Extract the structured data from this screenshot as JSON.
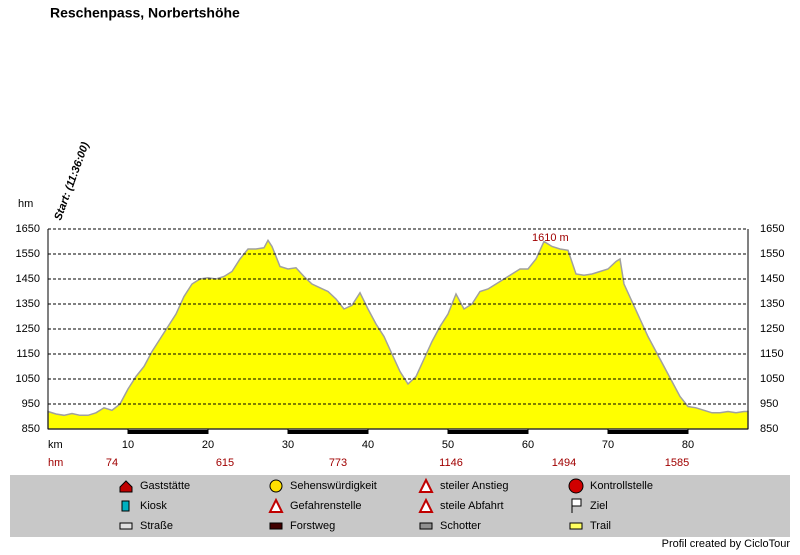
{
  "chart_data": {
    "type": "area",
    "title": "Reschenpass, Norbertshöhe",
    "start_label": "Start: (11:36:00)",
    "ylabel": "hm",
    "xlabel": "km",
    "annotation": {
      "text": "1610 m",
      "x": 62,
      "y": 1610
    },
    "color": "#ffff00",
    "line_color": "#a0a0a0",
    "x": [
      0,
      1,
      2,
      3,
      4,
      5,
      6,
      7,
      8,
      9,
      10,
      11,
      12,
      13,
      14,
      15,
      16,
      17,
      18,
      19,
      20,
      21,
      22,
      23,
      24,
      25,
      26,
      27,
      27.5,
      28,
      29,
      30,
      31,
      32,
      33,
      34,
      35,
      36,
      37,
      38,
      39,
      40,
      41,
      42,
      43,
      44,
      45,
      46,
      47,
      48,
      49,
      50,
      51,
      52,
      53,
      54,
      55,
      56,
      57,
      58,
      59,
      60,
      61,
      62,
      63,
      64,
      65,
      66,
      67,
      68,
      69,
      70,
      71,
      71.5,
      72,
      73,
      74,
      75,
      76,
      77,
      78,
      79,
      80,
      81,
      82,
      83,
      84,
      85,
      86,
      87,
      87.5
    ],
    "values": [
      920,
      910,
      905,
      912,
      905,
      905,
      915,
      935,
      925,
      950,
      1010,
      1060,
      1100,
      1160,
      1210,
      1260,
      1310,
      1380,
      1430,
      1450,
      1455,
      1450,
      1460,
      1480,
      1530,
      1570,
      1570,
      1575,
      1605,
      1580,
      1500,
      1490,
      1495,
      1460,
      1430,
      1415,
      1400,
      1370,
      1330,
      1345,
      1395,
      1330,
      1270,
      1220,
      1150,
      1080,
      1030,
      1060,
      1130,
      1200,
      1260,
      1310,
      1390,
      1330,
      1350,
      1400,
      1410,
      1430,
      1450,
      1470,
      1490,
      1490,
      1530,
      1600,
      1580,
      1570,
      1565,
      1470,
      1465,
      1470,
      1480,
      1490,
      1520,
      1530,
      1430,
      1360,
      1290,
      1220,
      1160,
      1100,
      1040,
      980,
      940,
      935,
      925,
      915,
      915,
      920,
      915,
      920,
      920
    ],
    "xlim": [
      0,
      87.5
    ],
    "xticks": [
      10,
      20,
      30,
      40,
      50,
      60,
      70,
      80
    ],
    "ylim": [
      850,
      1650
    ],
    "yticks": [
      850,
      950,
      1050,
      1150,
      1250,
      1350,
      1450,
      1550,
      1650
    ],
    "grid": true,
    "climb": {
      "label": "hm",
      "values": [
        74,
        615,
        773,
        1146,
        1494,
        1585
      ]
    }
  },
  "legend": {
    "items": [
      "Gaststätte",
      "Sehenswürdigkeit",
      "steiler Anstieg",
      "Kontrollstelle",
      "Kiosk",
      "Gefahrenstelle",
      "steile Abfahrt",
      "Ziel",
      "Straße",
      "Forstweg",
      "Schotter",
      "Trail"
    ]
  },
  "footer": "Profil created by CicloTour"
}
